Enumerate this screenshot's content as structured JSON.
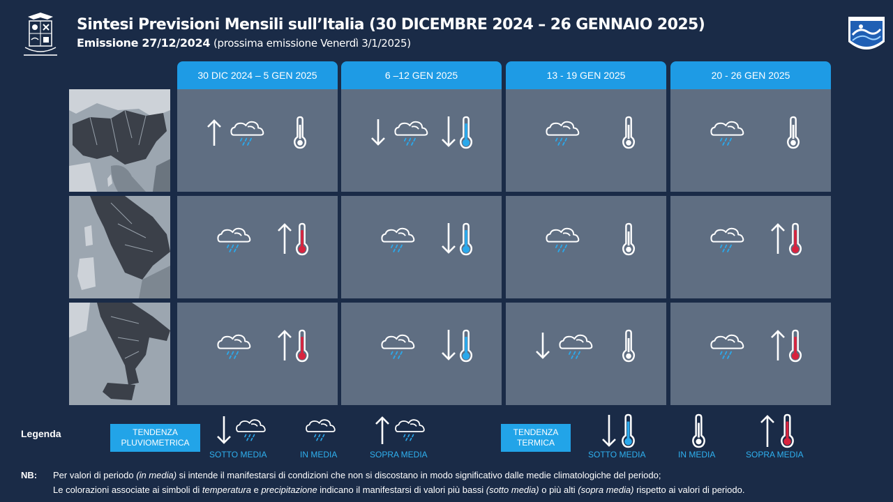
{
  "header": {
    "title": "Sintesi  Previsioni Mensili sull’Italia (30 DICEMBRE 2024 – 26 GENNAIO 2025)",
    "emission_label": "Emissione  27/12/2024",
    "emission_next": "(prossima emissione Venerdì 3/1/2025)"
  },
  "periods": [
    "30 DIC 2024 – 5 GEN 2025",
    "6 –12 GEN 2025",
    "13 - 19 GEN 2025",
    "20 - 26 GEN 2025"
  ],
  "regions": [
    "north",
    "center",
    "south"
  ],
  "forecast": [
    [
      {
        "precip": "above",
        "temp": "average"
      },
      {
        "precip": "below",
        "temp": "below"
      },
      {
        "precip": "average",
        "temp": "average"
      },
      {
        "precip": "average",
        "temp": "average"
      }
    ],
    [
      {
        "precip": "average",
        "temp": "above"
      },
      {
        "precip": "average",
        "temp": "below"
      },
      {
        "precip": "average",
        "temp": "average"
      },
      {
        "precip": "average",
        "temp": "above"
      }
    ],
    [
      {
        "precip": "average",
        "temp": "above"
      },
      {
        "precip": "average",
        "temp": "below"
      },
      {
        "precip": "below",
        "temp": "average"
      },
      {
        "precip": "average",
        "temp": "above"
      }
    ]
  ],
  "colors": {
    "header_blue": "#1e9be5",
    "cell_gray": "#5f6e82",
    "background": "#1a2b47",
    "cold": "#2aa9ec",
    "warm": "#d8233e",
    "legend_text": "#2fb1f0"
  },
  "legend": {
    "title": "Legenda",
    "precip_box": "TENDENZA PLUVIOMETRICA",
    "temp_box": "TENDENZA TERMICA",
    "below": "SOTTO  MEDIA",
    "average": "IN MEDIA",
    "above": "SOPRA MEDIA"
  },
  "note": {
    "label": "NB:",
    "l1_a": "Per valori di periodo ",
    "l1_b": "(in media)",
    "l1_c": " si intende il manifestarsi di condizioni che non  si discostano in modo  significativo dalle medie climatologiche del periodo;",
    "l2_a": "Le colorazioni associate ai simboli di ",
    "l2_b": "temperatura",
    "l2_c": " e ",
    "l2_d": "precipitazione",
    "l2_e": " indicano il manifestarsi di valori più bassi ",
    "l2_f": "(sotto media)",
    "l2_g": " o più alti ",
    "l2_h": "(sopra media)",
    "l2_i": " rispetto ai valori di periodo."
  }
}
